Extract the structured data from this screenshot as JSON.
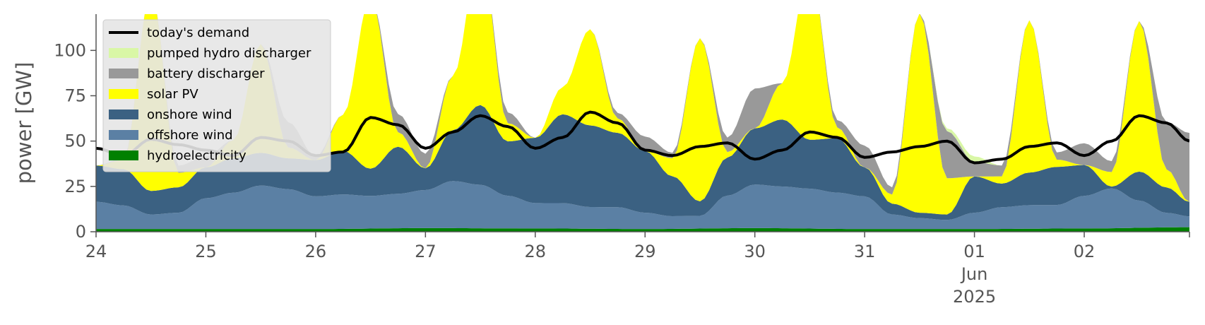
{
  "chart_data": {
    "type": "area",
    "ylabel": "power [GW]",
    "xlabel": "",
    "ylim": [
      0,
      120
    ],
    "yticks": [
      0,
      25,
      50,
      75,
      100
    ],
    "xlim": [
      "2025-05-24",
      "2025-06-02T23:00"
    ],
    "xticks": [
      {
        "date": "2025-05-24",
        "label": "24"
      },
      {
        "date": "2025-05-25",
        "label": "25"
      },
      {
        "date": "2025-05-26",
        "label": "26"
      },
      {
        "date": "2025-05-27",
        "label": "27"
      },
      {
        "date": "2025-05-28",
        "label": "28"
      },
      {
        "date": "2025-05-29",
        "label": "29"
      },
      {
        "date": "2025-05-30",
        "label": "30"
      },
      {
        "date": "2025-05-31",
        "label": "31"
      },
      {
        "date": "2025-06-01",
        "label": "01",
        "sublabels": [
          "Jun",
          "2025"
        ]
      },
      {
        "date": "2025-06-02",
        "label": "02"
      }
    ],
    "stack_order": [
      "hydroelectricity",
      "offshore wind",
      "onshore wind",
      "solar PV",
      "battery discharger",
      "pumped hydro discharger"
    ],
    "legend": {
      "placement": "upper-left",
      "entries": [
        {
          "label": "today's demand",
          "color": "#000000",
          "kind": "line"
        },
        {
          "label": "pumped hydro discharger",
          "color": "#d9f7a6",
          "kind": "patch"
        },
        {
          "label": "battery discharger",
          "color": "#999999",
          "kind": "patch"
        },
        {
          "label": "solar PV",
          "color": "#ffff00",
          "kind": "patch"
        },
        {
          "label": "onshore wind",
          "color": "#3b6182",
          "kind": "patch"
        },
        {
          "label": "offshore wind",
          "color": "#5b80a4",
          "kind": "patch"
        },
        {
          "label": "hydroelectricity",
          "color": "#008000",
          "kind": "patch"
        }
      ]
    },
    "series": [
      {
        "name": "hydroelectricity",
        "color": "#008000",
        "points": [
          [
            "2025-05-24",
            1.5
          ],
          [
            "2025-05-26",
            1.5
          ],
          [
            "2025-05-27",
            2.0
          ],
          [
            "2025-05-28",
            1.8
          ],
          [
            "2025-05-29",
            1.5
          ],
          [
            "2025-05-30",
            2.0
          ],
          [
            "2025-05-31",
            1.5
          ],
          [
            "2025-06-01",
            1.5
          ],
          [
            "2025-06-02",
            1.8
          ],
          [
            "2025-06-02T23:00",
            2.5
          ]
        ]
      },
      {
        "name": "offshore wind",
        "color": "#5b80a4",
        "points": [
          [
            "2025-05-24",
            15
          ],
          [
            "2025-05-24T06:00",
            13
          ],
          [
            "2025-05-24T12:00",
            8
          ],
          [
            "2025-05-24T18:00",
            9
          ],
          [
            "2025-05-25",
            17
          ],
          [
            "2025-05-25T06:00",
            20
          ],
          [
            "2025-05-25T12:00",
            24
          ],
          [
            "2025-05-25T18:00",
            22
          ],
          [
            "2025-05-26",
            18
          ],
          [
            "2025-05-26T06:00",
            19
          ],
          [
            "2025-05-26T12:00",
            18
          ],
          [
            "2025-05-26T18:00",
            19
          ],
          [
            "2025-05-27",
            21
          ],
          [
            "2025-05-27T06:00",
            26
          ],
          [
            "2025-05-27T12:00",
            24
          ],
          [
            "2025-05-27T18:00",
            18
          ],
          [
            "2025-05-28",
            14
          ],
          [
            "2025-05-28T06:00",
            14
          ],
          [
            "2025-05-28T12:00",
            12
          ],
          [
            "2025-05-28T18:00",
            12
          ],
          [
            "2025-05-29",
            9
          ],
          [
            "2025-05-29T06:00",
            7
          ],
          [
            "2025-05-29T12:00",
            7
          ],
          [
            "2025-05-29T18:00",
            18
          ],
          [
            "2025-05-30",
            24
          ],
          [
            "2025-05-30T06:00",
            23
          ],
          [
            "2025-05-30T12:00",
            22
          ],
          [
            "2025-05-30T18:00",
            20
          ],
          [
            "2025-05-31",
            18
          ],
          [
            "2025-05-31T06:00",
            8
          ],
          [
            "2025-05-31T12:00",
            6
          ],
          [
            "2025-05-31T18:00",
            5
          ],
          [
            "2025-06-01",
            9
          ],
          [
            "2025-06-01T06:00",
            12
          ],
          [
            "2025-06-01T12:00",
            13
          ],
          [
            "2025-06-01T18:00",
            13
          ],
          [
            "2025-06-02",
            18
          ],
          [
            "2025-06-02T06:00",
            22
          ],
          [
            "2025-06-02T12:00",
            15
          ],
          [
            "2025-06-02T18:00",
            8
          ],
          [
            "2025-06-02T23:00",
            6
          ]
        ]
      },
      {
        "name": "onshore wind",
        "color": "#3b6182",
        "points": [
          [
            "2025-05-24",
            20
          ],
          [
            "2025-05-24T06:00",
            20
          ],
          [
            "2025-05-24T12:00",
            13
          ],
          [
            "2025-05-24T18:00",
            14
          ],
          [
            "2025-05-25",
            17
          ],
          [
            "2025-05-25T06:00",
            19
          ],
          [
            "2025-05-25T12:00",
            18
          ],
          [
            "2025-05-25T18:00",
            17
          ],
          [
            "2025-05-26",
            20
          ],
          [
            "2025-05-26T06:00",
            24
          ],
          [
            "2025-05-26T12:00",
            15
          ],
          [
            "2025-05-26T18:00",
            26
          ],
          [
            "2025-05-27",
            12
          ],
          [
            "2025-05-27T06:00",
            28
          ],
          [
            "2025-05-27T12:00",
            44
          ],
          [
            "2025-05-27T18:00",
            30
          ],
          [
            "2025-05-28",
            36
          ],
          [
            "2025-05-28T06:00",
            49
          ],
          [
            "2025-05-28T12:00",
            45
          ],
          [
            "2025-05-28T18:00",
            41
          ],
          [
            "2025-05-29",
            34
          ],
          [
            "2025-05-29T06:00",
            22
          ],
          [
            "2025-05-29T12:00",
            8
          ],
          [
            "2025-05-29T18:00",
            21
          ],
          [
            "2025-05-30",
            31
          ],
          [
            "2025-05-30T06:00",
            37
          ],
          [
            "2025-05-30T12:00",
            27
          ],
          [
            "2025-05-30T18:00",
            30
          ],
          [
            "2025-05-31",
            16
          ],
          [
            "2025-05-31T06:00",
            6
          ],
          [
            "2025-05-31T12:00",
            3
          ],
          [
            "2025-05-31T18:00",
            3
          ],
          [
            "2025-06-01",
            20
          ],
          [
            "2025-06-01T06:00",
            13
          ],
          [
            "2025-06-01T12:00",
            18
          ],
          [
            "2025-06-01T18:00",
            21
          ],
          [
            "2025-06-02",
            17
          ],
          [
            "2025-06-02T06:00",
            1
          ],
          [
            "2025-06-02T12:00",
            16
          ],
          [
            "2025-06-02T18:00",
            14
          ],
          [
            "2025-06-02T23:00",
            8
          ]
        ]
      },
      {
        "name": "solar PV",
        "color": "#ffff00",
        "points": [
          [
            "2025-05-24",
            0
          ],
          [
            "2025-05-24T06:00",
            5
          ],
          [
            "2025-05-24T12:00",
            110
          ],
          [
            "2025-05-24T18:00",
            8
          ],
          [
            "2025-05-25",
            0
          ],
          [
            "2025-05-25T06:00",
            10
          ],
          [
            "2025-05-25T12:00",
            60
          ],
          [
            "2025-05-25T18:00",
            6
          ],
          [
            "2025-05-26",
            0
          ],
          [
            "2025-05-26T06:00",
            20
          ],
          [
            "2025-05-26T12:00",
            95
          ],
          [
            "2025-05-26T18:00",
            8
          ],
          [
            "2025-05-27",
            0
          ],
          [
            "2025-05-27T06:00",
            30
          ],
          [
            "2025-05-27T12:00",
            85
          ],
          [
            "2025-05-27T18:00",
            10
          ],
          [
            "2025-05-28",
            0
          ],
          [
            "2025-05-28T06:00",
            15
          ],
          [
            "2025-05-28T12:00",
            53
          ],
          [
            "2025-05-28T18:00",
            8
          ],
          [
            "2025-05-29",
            0
          ],
          [
            "2025-05-29T06:00",
            10
          ],
          [
            "2025-05-29T12:00",
            90
          ],
          [
            "2025-05-29T18:00",
            3
          ],
          [
            "2025-05-30",
            0
          ],
          [
            "2025-05-30T06:00",
            20
          ],
          [
            "2025-05-30T12:00",
            95
          ],
          [
            "2025-05-30T18:00",
            6
          ],
          [
            "2025-05-31",
            0
          ],
          [
            "2025-05-31T06:00",
            5
          ],
          [
            "2025-05-31T12:00",
            110
          ],
          [
            "2025-05-31T18:00",
            20
          ],
          [
            "2025-06-01",
            0
          ],
          [
            "2025-06-01T06:00",
            4
          ],
          [
            "2025-06-01T12:00",
            84
          ],
          [
            "2025-06-01T18:00",
            4
          ],
          [
            "2025-06-02",
            0
          ],
          [
            "2025-06-02T06:00",
            8
          ],
          [
            "2025-06-02T12:00",
            83
          ],
          [
            "2025-06-02T18:00",
            10
          ],
          [
            "2025-06-02T23:00",
            0
          ]
        ]
      },
      {
        "name": "battery discharger",
        "color": "#999999",
        "points": [
          [
            "2025-05-24",
            0
          ],
          [
            "2025-05-24T06:00",
            1
          ],
          [
            "2025-05-24T12:00",
            0
          ],
          [
            "2025-05-24T18:00",
            4
          ],
          [
            "2025-05-25",
            6
          ],
          [
            "2025-05-25T06:00",
            0
          ],
          [
            "2025-05-25T12:00",
            0
          ],
          [
            "2025-05-25T18:00",
            14
          ],
          [
            "2025-05-26",
            2
          ],
          [
            "2025-05-26T06:00",
            0
          ],
          [
            "2025-05-26T12:00",
            0
          ],
          [
            "2025-05-26T18:00",
            10
          ],
          [
            "2025-05-27",
            8
          ],
          [
            "2025-05-27T06:00",
            0
          ],
          [
            "2025-05-27T12:00",
            0
          ],
          [
            "2025-05-27T18:00",
            6
          ],
          [
            "2025-05-28",
            0
          ],
          [
            "2025-05-28T06:00",
            0
          ],
          [
            "2025-05-28T12:00",
            0
          ],
          [
            "2025-05-28T18:00",
            3
          ],
          [
            "2025-05-29",
            8
          ],
          [
            "2025-05-29T06:00",
            3
          ],
          [
            "2025-05-29T12:00",
            0
          ],
          [
            "2025-05-29T18:00",
            8
          ],
          [
            "2025-05-30",
            22
          ],
          [
            "2025-05-30T06:00",
            0
          ],
          [
            "2025-05-30T12:00",
            0
          ],
          [
            "2025-05-30T18:00",
            4
          ],
          [
            "2025-05-31",
            12
          ],
          [
            "2025-05-31T06:00",
            4
          ],
          [
            "2025-05-31T12:00",
            0
          ],
          [
            "2025-05-31T18:00",
            26
          ],
          [
            "2025-06-01",
            8
          ],
          [
            "2025-06-01T06:00",
            6
          ],
          [
            "2025-06-01T12:00",
            0
          ],
          [
            "2025-06-01T18:00",
            4
          ],
          [
            "2025-06-02",
            12
          ],
          [
            "2025-06-02T06:00",
            6
          ],
          [
            "2025-06-02T12:00",
            0
          ],
          [
            "2025-06-02T18:00",
            26
          ],
          [
            "2025-06-02T23:00",
            38
          ]
        ]
      },
      {
        "name": "pumped hydro discharger",
        "color": "#d9f7a6",
        "points": [
          [
            "2025-05-24",
            0
          ],
          [
            "2025-05-31T12:00",
            0
          ],
          [
            "2025-06-01",
            3
          ],
          [
            "2025-06-01T06:00",
            0
          ],
          [
            "2025-06-02T23:00",
            0
          ]
        ]
      },
      {
        "name": "today's demand",
        "color": "#000000",
        "kind": "line",
        "points": [
          [
            "2025-05-24",
            46
          ],
          [
            "2025-05-24T06:00",
            42
          ],
          [
            "2025-05-24T12:00",
            51
          ],
          [
            "2025-05-24T18:00",
            48
          ],
          [
            "2025-05-25",
            45
          ],
          [
            "2025-05-25T06:00",
            42
          ],
          [
            "2025-05-25T12:00",
            52
          ],
          [
            "2025-05-25T18:00",
            50
          ],
          [
            "2025-05-26",
            42
          ],
          [
            "2025-05-26T06:00",
            44
          ],
          [
            "2025-05-26T12:00",
            63
          ],
          [
            "2025-05-26T18:00",
            59
          ],
          [
            "2025-05-27",
            46
          ],
          [
            "2025-05-27T06:00",
            55
          ],
          [
            "2025-05-27T12:00",
            64
          ],
          [
            "2025-05-27T18:00",
            58
          ],
          [
            "2025-05-28",
            46
          ],
          [
            "2025-05-28T06:00",
            52
          ],
          [
            "2025-05-28T12:00",
            66
          ],
          [
            "2025-05-28T18:00",
            60
          ],
          [
            "2025-05-29",
            45
          ],
          [
            "2025-05-29T06:00",
            42
          ],
          [
            "2025-05-29T12:00",
            47
          ],
          [
            "2025-05-29T18:00",
            49
          ],
          [
            "2025-05-30",
            40
          ],
          [
            "2025-05-30T06:00",
            45
          ],
          [
            "2025-05-30T12:00",
            55
          ],
          [
            "2025-05-30T18:00",
            52
          ],
          [
            "2025-05-31",
            41
          ],
          [
            "2025-05-31T06:00",
            44
          ],
          [
            "2025-05-31T12:00",
            47
          ],
          [
            "2025-05-31T18:00",
            50
          ],
          [
            "2025-06-01",
            38
          ],
          [
            "2025-06-01T06:00",
            40
          ],
          [
            "2025-06-01T12:00",
            47
          ],
          [
            "2025-06-01T18:00",
            49
          ],
          [
            "2025-06-02",
            42
          ],
          [
            "2025-06-02T06:00",
            50
          ],
          [
            "2025-06-02T12:00",
            64
          ],
          [
            "2025-06-02T18:00",
            60
          ],
          [
            "2025-06-02T23:00",
            50
          ]
        ]
      }
    ]
  }
}
